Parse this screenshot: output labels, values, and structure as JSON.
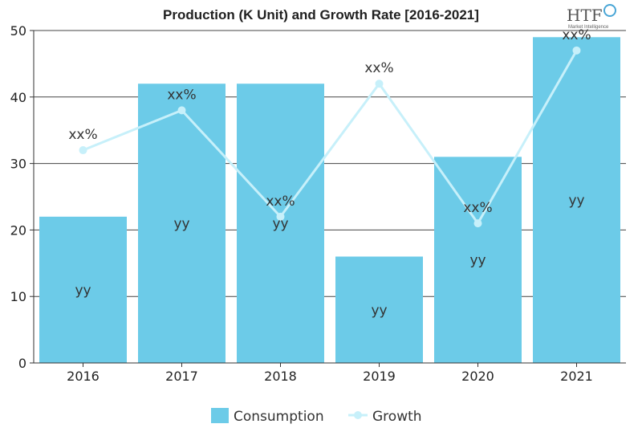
{
  "title": "Production (K Unit) and Growth Rate [2016-2021]",
  "logo": {
    "text": "HTF",
    "subtext": "Market Intelligence"
  },
  "colors": {
    "bar": "#6ccbe8",
    "line": "#c7f0fa",
    "point": "#c7f0fa",
    "axis": "#333333"
  },
  "chart_data": {
    "type": "bar",
    "title": "Production (K Unit) and Growth Rate [2016-2021]",
    "categories": [
      "2016",
      "2017",
      "2018",
      "2019",
      "2020",
      "2021"
    ],
    "ylim": [
      0,
      50
    ],
    "yticks": [
      0,
      10,
      20,
      30,
      40,
      50
    ],
    "grid": true,
    "legend_position": "bottom",
    "series": [
      {
        "name": "Consumption",
        "type": "bar",
        "values": [
          22,
          42,
          42,
          16,
          31,
          49
        ],
        "labels": [
          "yy",
          "yy",
          "yy",
          "yy",
          "yy",
          "yy"
        ]
      },
      {
        "name": "Growth",
        "type": "line",
        "values": [
          32,
          38,
          22,
          42,
          21,
          47
        ],
        "labels": [
          "xx%",
          "xx%",
          "xx%",
          "xx%",
          "xx%",
          "xx%"
        ]
      }
    ]
  }
}
